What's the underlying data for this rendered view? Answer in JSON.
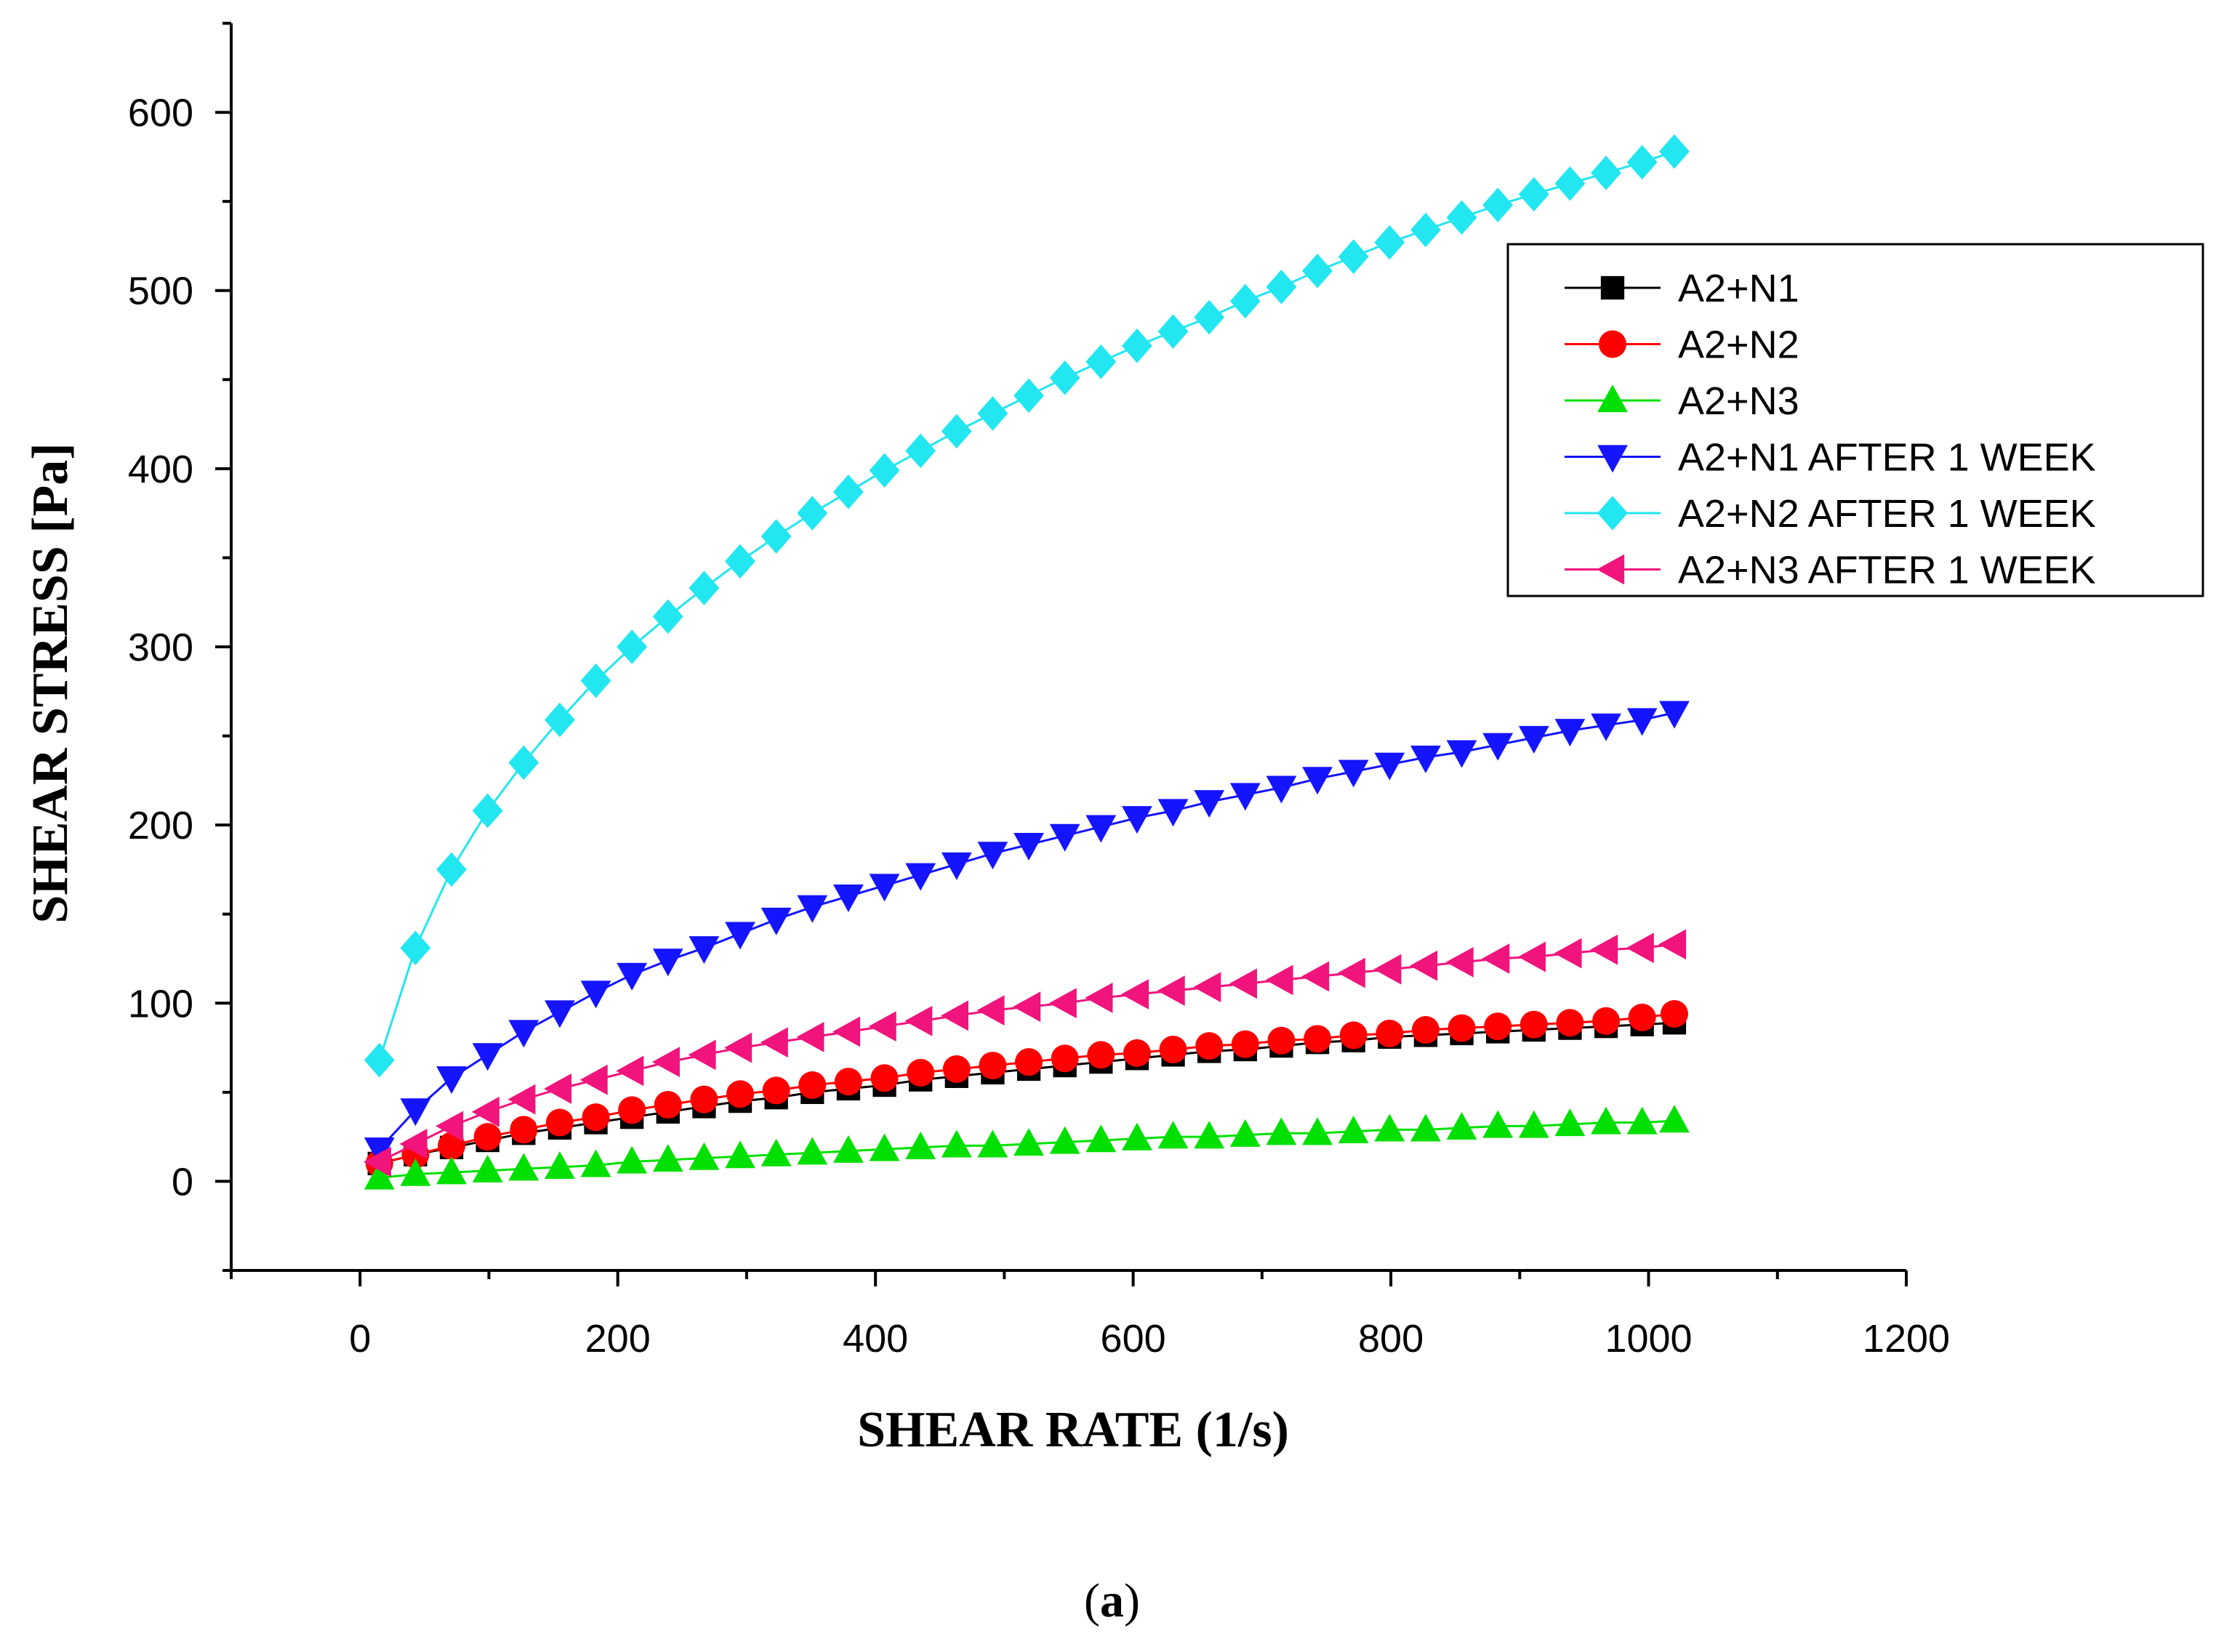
{
  "caption": {
    "open": "(",
    "letter": "a",
    "close": ")"
  },
  "chart_data": {
    "type": "scatter",
    "xlabel": "SHEAR RATE (1/s)",
    "ylabel": "SHEAR STRESS [Pa]",
    "xlim": [
      -100,
      1200
    ],
    "ylim": [
      -50,
      650
    ],
    "xticks": [
      0,
      200,
      400,
      600,
      800,
      1000,
      1200
    ],
    "yticks": [
      0,
      100,
      200,
      300,
      400,
      500,
      600
    ],
    "x": [
      15,
      43,
      71,
      99,
      127,
      155,
      183,
      211,
      239,
      267,
      295,
      323,
      351,
      379,
      407,
      435,
      463,
      491,
      519,
      547,
      575,
      603,
      631,
      659,
      687,
      715,
      743,
      771,
      799,
      827,
      855,
      883,
      911,
      939,
      967,
      995,
      1020
    ],
    "legend_position": "top-right",
    "series": [
      {
        "name": "A2+N1",
        "marker": "square",
        "color": "#000000",
        "values": [
          10,
          15,
          19,
          23,
          27,
          30,
          33,
          36,
          39,
          42,
          45,
          47,
          50,
          52,
          54,
          57,
          59,
          61,
          63,
          65,
          67,
          69,
          71,
          73,
          74,
          76,
          78,
          79,
          81,
          82,
          83,
          84,
          85,
          86,
          87,
          88,
          89
        ]
      },
      {
        "name": "A2+N2",
        "marker": "circle",
        "color": "#ff0000",
        "values": [
          10,
          15,
          20,
          25,
          29,
          33,
          36,
          40,
          43,
          46,
          49,
          51,
          54,
          56,
          58,
          61,
          63,
          65,
          67,
          69,
          71,
          72,
          74,
          76,
          77,
          79,
          80,
          82,
          83,
          85,
          86,
          87,
          88,
          89,
          90,
          92,
          94
        ]
      },
      {
        "name": "A2+N3",
        "marker": "triangle-up",
        "color": "#00e000",
        "values": [
          2,
          4,
          5,
          6,
          7,
          8,
          9,
          11,
          12,
          13,
          14,
          15,
          16,
          17,
          18,
          19,
          20,
          20,
          21,
          22,
          23,
          24,
          25,
          25,
          26,
          27,
          27,
          28,
          29,
          29,
          30,
          31,
          31,
          32,
          33,
          33,
          34
        ]
      },
      {
        "name": "A2+N1 AFTER 1 WEEK",
        "marker": "triangle-down",
        "color": "#1414ff",
        "values": [
          18,
          40,
          58,
          71,
          84,
          95,
          106,
          116,
          124,
          131,
          139,
          147,
          154,
          160,
          166,
          172,
          178,
          184,
          189,
          194,
          199,
          204,
          208,
          213,
          217,
          221,
          226,
          230,
          234,
          238,
          241,
          245,
          249,
          253,
          256,
          259,
          263
        ]
      },
      {
        "name": "A2+N2 AFTER 1 WEEK",
        "marker": "diamond",
        "color": "#22e6f0",
        "values": [
          68,
          131,
          175,
          208,
          235,
          259,
          281,
          300,
          317,
          333,
          348,
          362,
          375,
          387,
          399,
          410,
          421,
          431,
          441,
          451,
          460,
          469,
          477,
          485,
          494,
          502,
          511,
          519,
          527,
          534,
          541,
          548,
          554,
          560,
          566,
          572,
          578
        ]
      },
      {
        "name": "A2+N3 AFTER 1 WEEK",
        "marker": "triangle-left",
        "color": "#f0147c",
        "values": [
          11,
          21,
          31,
          39,
          46,
          52,
          57,
          62,
          67,
          71,
          75,
          78,
          81,
          84,
          87,
          90,
          93,
          96,
          98,
          100,
          103,
          105,
          107,
          109,
          111,
          113,
          115,
          117,
          119,
          121,
          123,
          125,
          126,
          128,
          130,
          131,
          133
        ]
      }
    ]
  }
}
